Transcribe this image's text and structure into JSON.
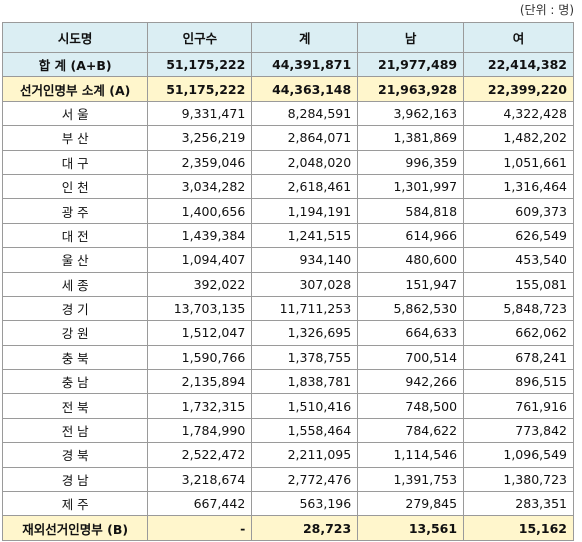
{
  "unit": "(단위 : 명)",
  "table": {
    "columns": [
      "시도명",
      "인구수",
      "계",
      "남",
      "여"
    ],
    "rows": [
      [
        "합 계 (A+B)",
        "51,175,222",
        "44,391,871",
        "21,977,489",
        "22,414,382"
      ],
      [
        "선거인명부 소계 (A)",
        "51,175,222",
        "44,363,148",
        "21,963,928",
        "22,399,220"
      ],
      [
        "서 울",
        "9,331,471",
        "8,284,591",
        "3,962,163",
        "4,322,428"
      ],
      [
        "부 산",
        "3,256,219",
        "2,864,071",
        "1,381,869",
        "1,482,202"
      ],
      [
        "대 구",
        "2,359,046",
        "2,048,020",
        "996,359",
        "1,051,661"
      ],
      [
        "인 천",
        "3,034,282",
        "2,618,461",
        "1,301,997",
        "1,316,464"
      ],
      [
        "광 주",
        "1,400,656",
        "1,194,191",
        "584,818",
        "609,373"
      ],
      [
        "대 전",
        "1,439,384",
        "1,241,515",
        "614,966",
        "626,549"
      ],
      [
        "울 산",
        "1,094,407",
        "934,140",
        "480,600",
        "453,540"
      ],
      [
        "세 종",
        "392,022",
        "307,028",
        "151,947",
        "155,081"
      ],
      [
        "경 기",
        "13,703,135",
        "11,711,253",
        "5,862,530",
        "5,848,723"
      ],
      [
        "강 원",
        "1,512,047",
        "1,326,695",
        "664,633",
        "662,062"
      ],
      [
        "충 북",
        "1,590,766",
        "1,378,755",
        "700,514",
        "678,241"
      ],
      [
        "충 남",
        "2,135,894",
        "1,838,781",
        "942,266",
        "896,515"
      ],
      [
        "전 북",
        "1,732,315",
        "1,510,416",
        "748,500",
        "761,916"
      ],
      [
        "전 남",
        "1,784,990",
        "1,558,464",
        "784,622",
        "773,842"
      ],
      [
        "경 북",
        "2,522,472",
        "2,211,095",
        "1,114,546",
        "1,096,549"
      ],
      [
        "경 남",
        "3,218,674",
        "2,772,476",
        "1,391,753",
        "1,380,723"
      ],
      [
        "제 주",
        "667,442",
        "563,196",
        "279,845",
        "283,351"
      ],
      [
        "재외선거인명부 (B)",
        "-",
        "28,723",
        "13,561",
        "15,162"
      ]
    ]
  }
}
